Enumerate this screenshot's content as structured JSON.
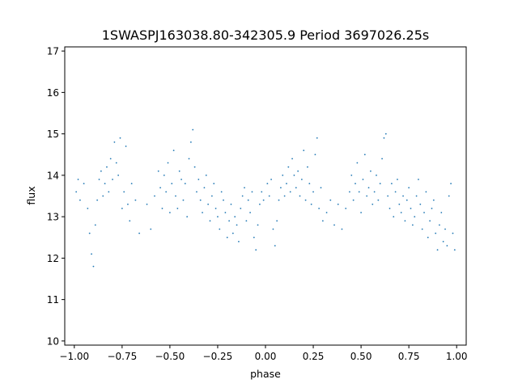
{
  "chart_data": {
    "type": "scatter",
    "title": "1SWASPJ163038.80-342305.9 Period 3697026.25s",
    "xlabel": "phase",
    "ylabel": "flux",
    "xlim": [
      -1.05,
      1.05
    ],
    "ylim": [
      9.9,
      17.1
    ],
    "x_ticks": [
      -1.0,
      -0.75,
      -0.5,
      -0.25,
      0.0,
      0.25,
      0.5,
      0.75,
      1.0
    ],
    "x_tick_labels": [
      "−1.00",
      "−0.75",
      "−0.50",
      "−0.25",
      "0.00",
      "0.25",
      "0.50",
      "0.75",
      "1.00"
    ],
    "y_ticks": [
      10,
      11,
      12,
      13,
      14,
      15,
      16,
      17
    ],
    "y_tick_labels": [
      "10",
      "11",
      "12",
      "13",
      "14",
      "15",
      "16",
      "17"
    ],
    "grid": false,
    "legend": "none",
    "marker_color": "#1f77b4",
    "series": [
      {
        "x": [
          -0.99,
          -0.98,
          -0.97,
          -0.95,
          -0.93,
          -0.92,
          -0.91,
          -0.9,
          -0.89,
          -0.88,
          -0.87,
          -0.86,
          -0.85,
          -0.84,
          -0.83,
          -0.82,
          -0.81,
          -0.8,
          -0.79,
          -0.78,
          -0.77,
          -0.76,
          -0.75,
          -0.74,
          -0.73,
          -0.72,
          -0.71,
          -0.7,
          -0.68,
          -0.66,
          -0.62,
          -0.6,
          -0.58,
          -0.56,
          -0.55,
          -0.54,
          -0.53,
          -0.52,
          -0.51,
          -0.5,
          -0.49,
          -0.48,
          -0.47,
          -0.46,
          -0.45,
          -0.44,
          -0.43,
          -0.42,
          -0.41,
          -0.4,
          -0.39,
          -0.38,
          -0.37,
          -0.36,
          -0.35,
          -0.34,
          -0.33,
          -0.32,
          -0.31,
          -0.3,
          -0.29,
          -0.28,
          -0.27,
          -0.26,
          -0.25,
          -0.24,
          -0.23,
          -0.22,
          -0.21,
          -0.2,
          -0.19,
          -0.18,
          -0.17,
          -0.16,
          -0.15,
          -0.14,
          -0.13,
          -0.12,
          -0.11,
          -0.1,
          -0.09,
          -0.08,
          -0.07,
          -0.06,
          -0.05,
          -0.04,
          -0.03,
          -0.02,
          -0.01,
          0.01,
          0.02,
          0.03,
          0.04,
          0.05,
          0.06,
          0.07,
          0.08,
          0.09,
          0.1,
          0.11,
          0.12,
          0.13,
          0.14,
          0.15,
          0.16,
          0.17,
          0.18,
          0.19,
          0.2,
          0.21,
          0.22,
          0.23,
          0.24,
          0.25,
          0.26,
          0.27,
          0.28,
          0.29,
          0.3,
          0.32,
          0.34,
          0.36,
          0.38,
          0.4,
          0.42,
          0.44,
          0.45,
          0.46,
          0.47,
          0.48,
          0.49,
          0.5,
          0.51,
          0.52,
          0.53,
          0.54,
          0.55,
          0.56,
          0.57,
          0.58,
          0.59,
          0.6,
          0.61,
          0.62,
          0.63,
          0.64,
          0.65,
          0.66,
          0.67,
          0.68,
          0.69,
          0.7,
          0.71,
          0.72,
          0.73,
          0.74,
          0.75,
          0.76,
          0.77,
          0.78,
          0.79,
          0.8,
          0.81,
          0.82,
          0.83,
          0.84,
          0.85,
          0.86,
          0.87,
          0.88,
          0.89,
          0.9,
          0.91,
          0.92,
          0.93,
          0.94,
          0.95,
          0.96,
          0.97,
          0.98,
          0.99
        ],
        "y": [
          13.6,
          13.9,
          13.4,
          13.8,
          13.2,
          12.6,
          12.1,
          11.8,
          12.8,
          13.4,
          13.9,
          14.1,
          13.5,
          13.8,
          14.2,
          13.6,
          14.4,
          13.9,
          14.8,
          14.3,
          14.0,
          14.9,
          13.2,
          13.6,
          14.7,
          13.3,
          12.9,
          13.8,
          13.4,
          12.6,
          13.3,
          12.7,
          13.5,
          14.1,
          13.7,
          13.2,
          14.0,
          13.6,
          14.3,
          13.1,
          13.8,
          14.6,
          13.5,
          13.2,
          14.1,
          13.9,
          13.4,
          13.8,
          13.0,
          14.4,
          14.8,
          15.1,
          14.2,
          13.6,
          13.9,
          13.4,
          13.1,
          13.7,
          14.0,
          13.3,
          12.9,
          13.5,
          13.8,
          13.2,
          13.0,
          12.7,
          13.6,
          13.4,
          13.1,
          12.5,
          12.9,
          13.3,
          12.6,
          13.0,
          12.8,
          12.4,
          13.2,
          13.5,
          13.7,
          12.9,
          13.4,
          13.1,
          13.6,
          12.5,
          12.2,
          12.8,
          13.3,
          13.6,
          13.4,
          13.8,
          13.5,
          13.9,
          12.7,
          12.3,
          12.9,
          13.4,
          13.7,
          14.0,
          13.5,
          13.8,
          14.2,
          13.6,
          14.4,
          14.0,
          13.7,
          14.1,
          13.5,
          13.9,
          14.6,
          13.4,
          14.2,
          13.8,
          13.3,
          13.6,
          14.5,
          14.9,
          13.2,
          13.7,
          12.9,
          13.1,
          13.4,
          12.8,
          13.3,
          12.7,
          13.2,
          13.6,
          14.0,
          13.4,
          13.8,
          14.3,
          13.6,
          13.1,
          13.9,
          14.5,
          13.5,
          13.7,
          14.1,
          13.3,
          13.6,
          14.0,
          13.4,
          13.8,
          14.4,
          14.9,
          15.0,
          13.5,
          13.2,
          13.8,
          13.0,
          13.6,
          13.9,
          13.3,
          13.1,
          13.5,
          12.9,
          13.4,
          13.7,
          13.2,
          12.8,
          13.0,
          13.5,
          13.9,
          13.3,
          12.7,
          13.1,
          13.6,
          12.5,
          12.9,
          13.2,
          13.4,
          12.6,
          12.2,
          12.8,
          13.1,
          12.4,
          12.7,
          12.3,
          13.5,
          13.8,
          12.6,
          12.2
        ]
      }
    ]
  }
}
